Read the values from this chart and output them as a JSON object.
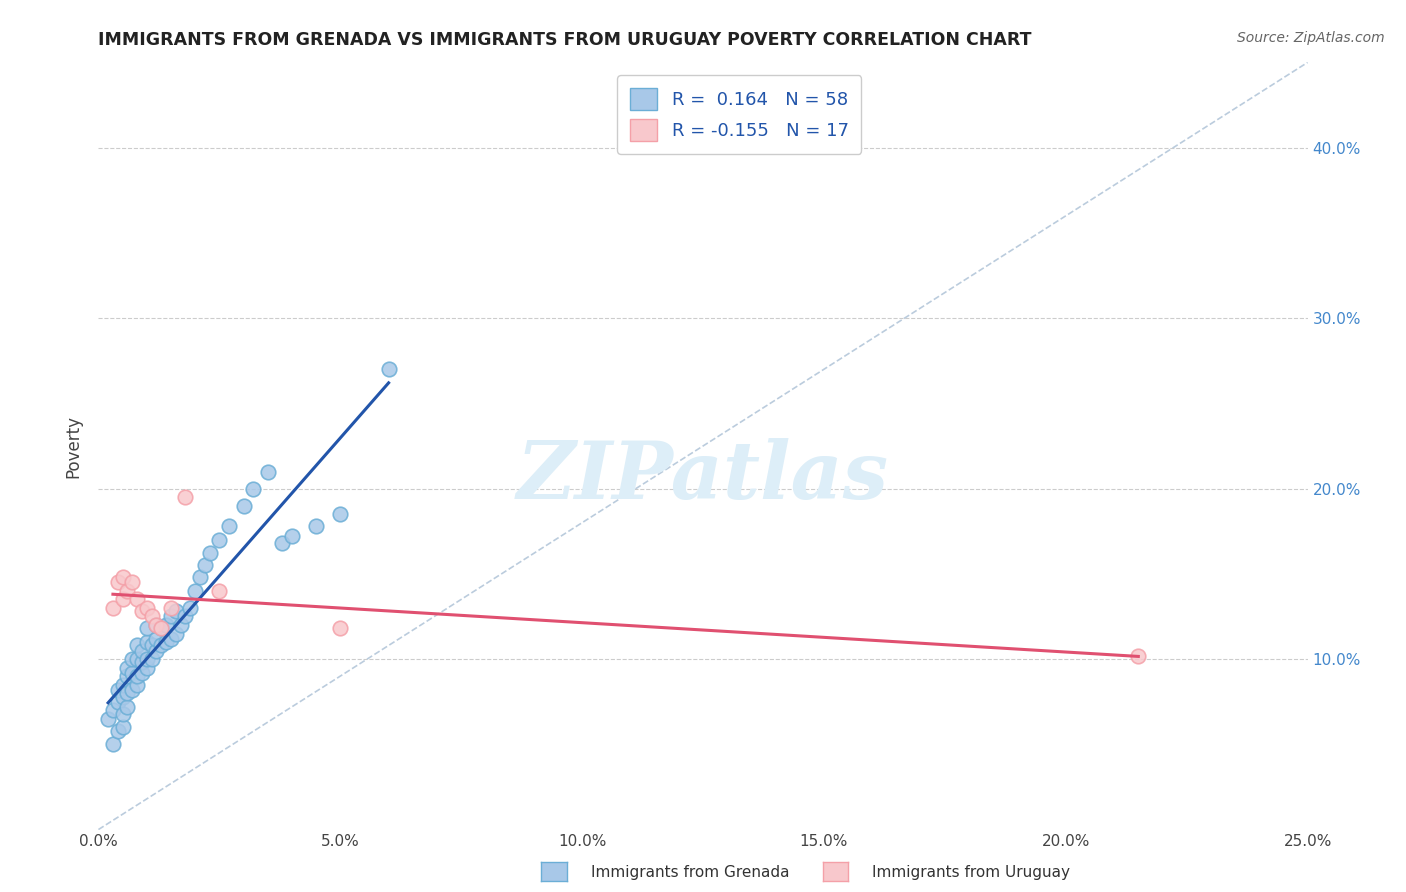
{
  "title": "IMMIGRANTS FROM GRENADA VS IMMIGRANTS FROM URUGUAY POVERTY CORRELATION CHART",
  "source": "Source: ZipAtlas.com",
  "ylabel": "Poverty",
  "xlim": [
    0.0,
    0.25
  ],
  "ylim": [
    0.0,
    0.45
  ],
  "xticks": [
    0.0,
    0.05,
    0.1,
    0.15,
    0.2,
    0.25
  ],
  "yticks": [
    0.1,
    0.2,
    0.3,
    0.4
  ],
  "xtick_labels": [
    "0.0%",
    "5.0%",
    "10.0%",
    "15.0%",
    "20.0%",
    "25.0%"
  ],
  "ytick_labels": [
    "10.0%",
    "20.0%",
    "30.0%",
    "40.0%"
  ],
  "grenada_color": "#a8c8e8",
  "grenada_edge_color": "#6baed6",
  "uruguay_color": "#f8c8cc",
  "uruguay_edge_color": "#f4a0a8",
  "grenada_R": 0.164,
  "grenada_N": 58,
  "uruguay_R": -0.155,
  "uruguay_N": 17,
  "watermark": "ZIPatlas",
  "watermark_color": "#ddeef8",
  "blue_line_color": "#2255aa",
  "pink_line_color": "#e05070",
  "diagonal_color": "#bbccdd",
  "grenada_x": [
    0.002,
    0.003,
    0.003,
    0.004,
    0.004,
    0.004,
    0.005,
    0.005,
    0.005,
    0.005,
    0.006,
    0.006,
    0.006,
    0.006,
    0.007,
    0.007,
    0.007,
    0.008,
    0.008,
    0.008,
    0.008,
    0.009,
    0.009,
    0.009,
    0.01,
    0.01,
    0.01,
    0.01,
    0.011,
    0.011,
    0.012,
    0.012,
    0.012,
    0.013,
    0.013,
    0.014,
    0.014,
    0.015,
    0.015,
    0.016,
    0.016,
    0.017,
    0.018,
    0.019,
    0.02,
    0.021,
    0.022,
    0.023,
    0.025,
    0.027,
    0.03,
    0.032,
    0.035,
    0.038,
    0.04,
    0.045,
    0.05,
    0.06
  ],
  "grenada_y": [
    0.065,
    0.05,
    0.07,
    0.058,
    0.075,
    0.082,
    0.06,
    0.068,
    0.078,
    0.085,
    0.072,
    0.08,
    0.09,
    0.095,
    0.082,
    0.092,
    0.1,
    0.085,
    0.09,
    0.1,
    0.108,
    0.092,
    0.098,
    0.105,
    0.095,
    0.1,
    0.11,
    0.118,
    0.1,
    0.108,
    0.105,
    0.112,
    0.12,
    0.108,
    0.118,
    0.11,
    0.12,
    0.112,
    0.125,
    0.115,
    0.128,
    0.12,
    0.125,
    0.13,
    0.14,
    0.148,
    0.155,
    0.162,
    0.17,
    0.178,
    0.19,
    0.2,
    0.21,
    0.168,
    0.172,
    0.178,
    0.185,
    0.27
  ],
  "uruguay_x": [
    0.003,
    0.004,
    0.005,
    0.005,
    0.006,
    0.007,
    0.008,
    0.009,
    0.01,
    0.011,
    0.012,
    0.013,
    0.015,
    0.018,
    0.025,
    0.05,
    0.215
  ],
  "uruguay_y": [
    0.13,
    0.145,
    0.135,
    0.148,
    0.14,
    0.145,
    0.135,
    0.128,
    0.13,
    0.125,
    0.12,
    0.118,
    0.13,
    0.195,
    0.14,
    0.118,
    0.102
  ]
}
